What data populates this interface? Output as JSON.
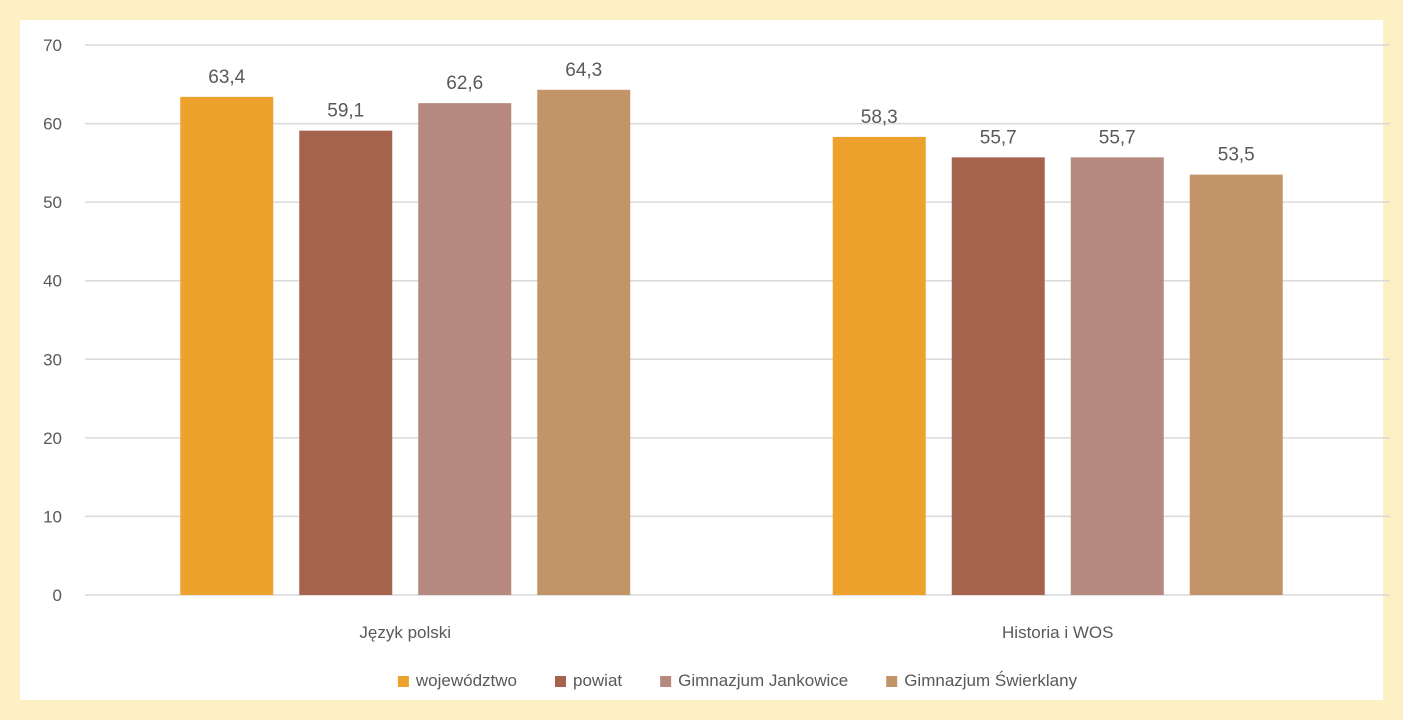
{
  "chart_data": {
    "type": "bar",
    "categories": [
      "Język polski",
      "Historia i WOS"
    ],
    "series": [
      {
        "name": "województwo",
        "values": [
          63.4,
          58.3
        ],
        "labels": [
          "63,4",
          "58,3"
        ],
        "color": "#eda22d"
      },
      {
        "name": "powiat",
        "values": [
          59.1,
          55.7
        ],
        "labels": [
          "59,1",
          "55,7"
        ],
        "color": "#a5634e"
      },
      {
        "name": "Gimnazjum Jankowice",
        "values": [
          62.6,
          55.7
        ],
        "labels": [
          "62,6",
          "55,7"
        ],
        "color": "#b5897d"
      },
      {
        "name": "Gimnazjum Świerklany",
        "values": [
          64.3,
          53.5
        ],
        "labels": [
          "64,3",
          "53,5"
        ],
        "color": "#c29569"
      }
    ],
    "yticks": [
      "0",
      "10",
      "20",
      "30",
      "40",
      "50",
      "60",
      "70"
    ],
    "ylim": [
      0,
      70
    ],
    "grid": true,
    "legend": "bottom",
    "data_labels": true,
    "title": "",
    "xlabel": "",
    "ylabel": ""
  },
  "colors": {
    "frame": "#fdf0c4",
    "grid": "#d9d9d9",
    "text": "#595959"
  }
}
